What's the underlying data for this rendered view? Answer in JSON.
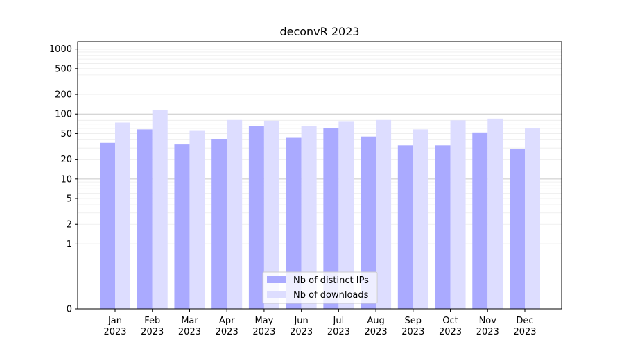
{
  "chart_data": {
    "type": "bar",
    "title": "deconvR 2023",
    "xlabel": "",
    "ylabel": "",
    "yscale": "symlog",
    "ylim": [
      0,
      1300
    ],
    "yticks": [
      0,
      1,
      2,
      5,
      10,
      20,
      50,
      100,
      200,
      500,
      1000
    ],
    "grid": true,
    "legend_position": "bottom-center",
    "categories": [
      "Jan\n2023",
      "Feb\n2023",
      "Mar\n2023",
      "Apr\n2023",
      "May\n2023",
      "Jun\n2023",
      "Jul\n2023",
      "Aug\n2023",
      "Sep\n2023",
      "Oct\n2023",
      "Nov\n2023",
      "Dec\n2023"
    ],
    "series": [
      {
        "name": "Nb of distinct IPs",
        "color": "#aaaaff",
        "values": [
          36,
          58,
          34,
          41,
          66,
          43,
          60,
          45,
          33,
          33,
          52,
          29
        ]
      },
      {
        "name": "Nb of downloads",
        "color": "#ddddff",
        "values": [
          74,
          116,
          55,
          81,
          79,
          66,
          76,
          81,
          58,
          80,
          85,
          60
        ]
      }
    ]
  }
}
